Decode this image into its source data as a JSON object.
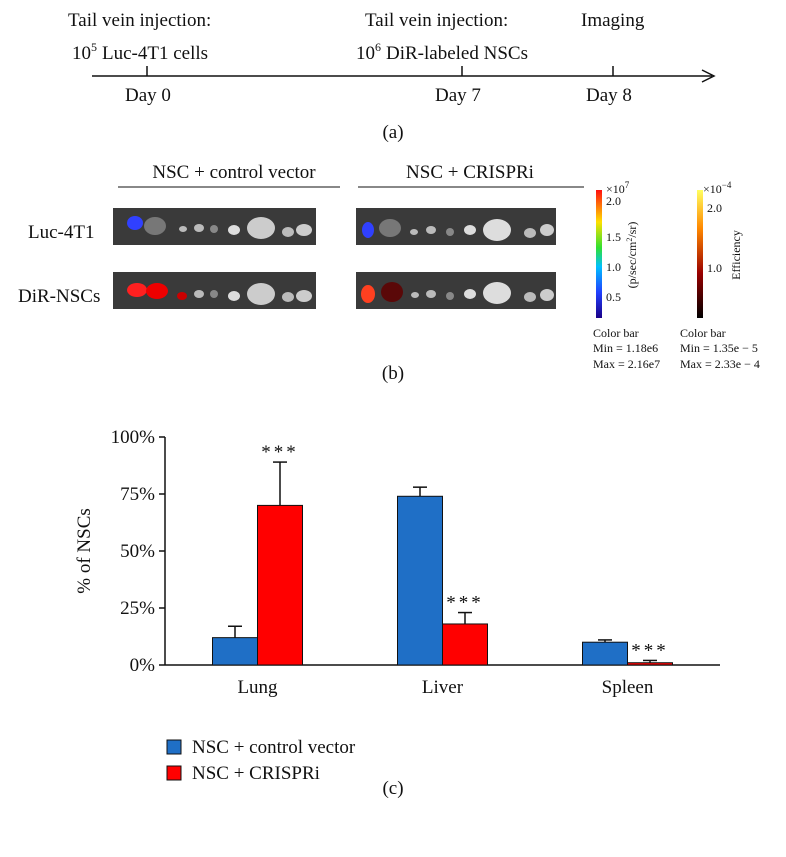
{
  "panel_a": {
    "events": [
      {
        "title": "Tail vein injection:",
        "detail_base": "10",
        "detail_exp": "5",
        "detail_text": "Luc-4T1 cells",
        "day": "Day 0"
      },
      {
        "title": "Tail vein injection:",
        "detail_base": "10",
        "detail_exp": "6",
        "detail_text": "DiR-labeled NSCs",
        "day": "Day 7"
      },
      {
        "title": "Imaging",
        "day": "Day 8"
      }
    ],
    "caption": "(a)"
  },
  "panel_b": {
    "column_labels": [
      "NSC + control vector",
      "NSC + CRISPRi"
    ],
    "row_labels": [
      "Luc-4T1",
      "DiR-NSCs"
    ],
    "color_bars": [
      {
        "multiplier_base": "×10",
        "multiplier_exp": "7",
        "ticks": [
          "2.0",
          "1.5",
          "1.0",
          "0.5"
        ],
        "unit_base": "(p/sec/cm",
        "unit_exp": "2",
        "unit_end": "/sr)",
        "title": "Color bar",
        "min": "Min = 1.18e6",
        "max": "Max = 2.16e7"
      },
      {
        "multiplier_base": "×10",
        "multiplier_exp": "−4",
        "ticks": [
          "2.0",
          "1.0"
        ],
        "unit": "Efficiency",
        "title": "Color bar",
        "min": "Min = 1.35e − 5",
        "max": "Max = 2.33e − 4"
      }
    ],
    "caption": "(b)"
  },
  "chart_data": {
    "type": "bar",
    "ylabel": "% of NSCs",
    "categories": [
      "Lung",
      "Liver",
      "Spleen"
    ],
    "series": [
      {
        "name": "NSC + control vector",
        "color": "#1f6fc6",
        "values": [
          12,
          74,
          10
        ],
        "errors": [
          5,
          4,
          1
        ]
      },
      {
        "name": "NSC + CRISPRi",
        "color": "#ff0000",
        "values": [
          70,
          18,
          1
        ],
        "errors": [
          19,
          5,
          1
        ]
      }
    ],
    "annotations": [
      "***",
      "***",
      "***"
    ],
    "ylim": [
      0,
      100
    ],
    "yticks": [
      {
        "value": 0,
        "label": "0%"
      },
      {
        "value": 25,
        "label": "25%"
      },
      {
        "value": 50,
        "label": "50%"
      },
      {
        "value": 75,
        "label": "75%"
      },
      {
        "value": 100,
        "label": "100%"
      }
    ],
    "caption": "(c)"
  }
}
